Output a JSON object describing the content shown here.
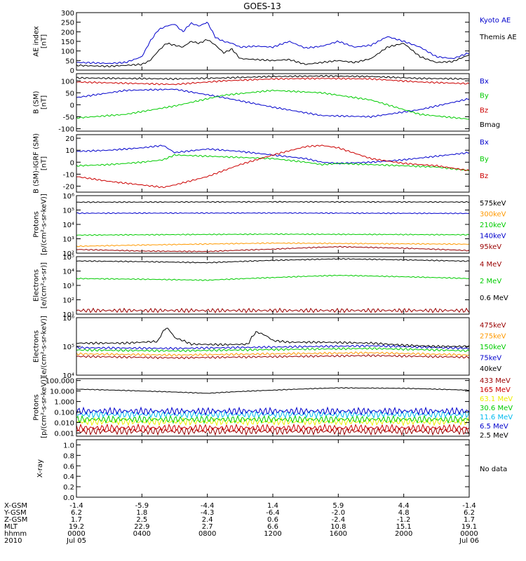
{
  "title": "GOES-13",
  "colors": {
    "black": "#000000",
    "blue": "#0000cc",
    "red": "#cc0000",
    "green": "#00cc00",
    "darkred": "#990000",
    "orange": "#ff9900",
    "cyan": "#00bbee",
    "yellow": "#eeee00"
  },
  "chart_data": [
    {
      "type": "line",
      "ylabel": [
        "AE index",
        "[nT]"
      ],
      "scale": "linear",
      "ylim": [
        0,
        300
      ],
      "yticks": [
        0,
        50,
        100,
        150,
        200,
        250,
        300
      ],
      "ytick_labels": [
        "0",
        "50",
        "100",
        "150",
        "200",
        "250",
        "300"
      ],
      "series": [
        {
          "name": "Kyoto AE",
          "color": "blue",
          "x": [
            0,
            1,
            2,
            3,
            4,
            4.5,
            5,
            5.5,
            6,
            6.5,
            7,
            7.5,
            8,
            8.5,
            9,
            9.5,
            10,
            11,
            12,
            13,
            14,
            15,
            16,
            17,
            18,
            19,
            20,
            21,
            22,
            23,
            24
          ],
          "y": [
            40,
            38,
            35,
            40,
            70,
            150,
            210,
            230,
            240,
            200,
            245,
            230,
            250,
            170,
            150,
            140,
            120,
            125,
            120,
            150,
            115,
            125,
            150,
            120,
            130,
            175,
            150,
            120,
            70,
            60,
            90
          ]
        },
        {
          "name": "Themis AE",
          "color": "black",
          "x": [
            0,
            1,
            2,
            3,
            4,
            4.5,
            5,
            5.5,
            6,
            6.5,
            7,
            7.5,
            8,
            8.5,
            9,
            9.5,
            10,
            11,
            12,
            13,
            14,
            15,
            16,
            17,
            18,
            19,
            20,
            21,
            22,
            23,
            24
          ],
          "y": [
            25,
            22,
            20,
            25,
            30,
            50,
            100,
            140,
            130,
            120,
            150,
            140,
            160,
            130,
            90,
            110,
            60,
            55,
            50,
            55,
            30,
            40,
            50,
            40,
            60,
            120,
            140,
            70,
            40,
            45,
            80
          ]
        }
      ]
    },
    {
      "type": "line",
      "ylabel": [
        "B (SM)",
        "[nT]"
      ],
      "scale": "linear",
      "ylim": [
        -110,
        130
      ],
      "yticks": [
        -100,
        -50,
        0,
        50,
        100
      ],
      "ytick_labels": [
        "-100",
        "-50",
        "0",
        "50",
        "100"
      ],
      "series": [
        {
          "name": "Bx",
          "color": "blue",
          "x": [
            0,
            3,
            6,
            9,
            12,
            15,
            18,
            21,
            24
          ],
          "y": [
            30,
            60,
            65,
            30,
            -10,
            -45,
            -50,
            -20,
            25
          ]
        },
        {
          "name": "By",
          "color": "green",
          "x": [
            0,
            3,
            6,
            9,
            12,
            15,
            18,
            21,
            24
          ],
          "y": [
            -55,
            -40,
            -5,
            40,
            60,
            50,
            20,
            -40,
            -60
          ]
        },
        {
          "name": "Bz",
          "color": "red",
          "x": [
            0,
            3,
            6,
            9,
            12,
            15,
            18,
            21,
            24
          ],
          "y": [
            95,
            90,
            85,
            100,
            108,
            110,
            108,
            95,
            88
          ]
        },
        {
          "name": "Bmag",
          "color": "black",
          "x": [
            0,
            3,
            6,
            9,
            12,
            15,
            18,
            21,
            24
          ],
          "y": [
            112,
            110,
            108,
            112,
            118,
            120,
            118,
            110,
            108
          ]
        }
      ]
    },
    {
      "type": "line",
      "ylabel": [
        "B (SM)-IGRF (SM)",
        "[nT]"
      ],
      "scale": "linear",
      "ylim": [
        -25,
        23
      ],
      "yticks": [
        -20,
        -10,
        0,
        10,
        20
      ],
      "ytick_labels": [
        "-20",
        "-10",
        "0",
        "10",
        "20"
      ],
      "series": [
        {
          "name": "Bx",
          "color": "blue",
          "x": [
            0,
            2,
            4,
            5.3,
            6,
            8,
            10,
            12,
            14,
            15,
            16,
            18,
            20,
            22,
            24
          ],
          "y": [
            9,
            10,
            12,
            14,
            8,
            11,
            9,
            6,
            3,
            0,
            -1,
            0,
            2,
            5,
            8
          ]
        },
        {
          "name": "By",
          "color": "green",
          "x": [
            0,
            2,
            4,
            5.3,
            6,
            8,
            10,
            12,
            14,
            15,
            16,
            18,
            20,
            22,
            24
          ],
          "y": [
            -3,
            -2,
            0,
            2,
            6,
            5,
            4,
            3,
            0,
            -2,
            -1,
            -2,
            -3,
            -4,
            -7
          ]
        },
        {
          "name": "Bz",
          "color": "red",
          "x": [
            0,
            2,
            4,
            5.3,
            6,
            8,
            10,
            12,
            14,
            15,
            16,
            18,
            20,
            22,
            24
          ],
          "y": [
            -12,
            -16,
            -19,
            -21,
            -19,
            -12,
            -2,
            6,
            13,
            14,
            12,
            3,
            -1,
            -3,
            -7
          ]
        }
      ]
    },
    {
      "type": "line",
      "ylabel": [
        "Protons",
        "[p/(cm²-s-sr-keV)]"
      ],
      "scale": "log",
      "ylim": [
        100,
        1000000
      ],
      "yticks": [
        100,
        1000,
        10000,
        100000,
        1000000
      ],
      "ytick_labels": [
        "10²",
        "10³",
        "10⁴",
        "10⁵",
        "10⁶"
      ],
      "series": [
        {
          "name": "575keV",
          "color": "black",
          "x": [
            0,
            12,
            24
          ],
          "y": [
            350000,
            370000,
            360000
          ]
        },
        {
          "name": "300keV",
          "color": "orange",
          "x": [
            0,
            12,
            24
          ],
          "y": [
            300,
            500,
            420
          ]
        },
        {
          "name": "210keV",
          "color": "green",
          "x": [
            0,
            12,
            24
          ],
          "y": [
            1800,
            2100,
            1900
          ]
        },
        {
          "name": "140keV",
          "color": "blue",
          "x": [
            0,
            12,
            24
          ],
          "y": [
            60000,
            62000,
            58000
          ]
        },
        {
          "name": "95keV",
          "color": "darkred",
          "x": [
            0,
            4,
            8,
            12,
            16,
            20,
            24
          ],
          "y": [
            180,
            140,
            130,
            190,
            280,
            220,
            150
          ]
        }
      ]
    },
    {
      "type": "line",
      "ylabel": [
        "Electrons",
        "[e/(cm²-s-sr)]"
      ],
      "scale": "log",
      "ylim": [
        10,
        100000
      ],
      "yticks": [
        10,
        100,
        1000,
        10000,
        100000
      ],
      "ytick_labels": [
        "10¹",
        "10²",
        "10³",
        "10⁴",
        "10⁵"
      ],
      "series": [
        {
          "name": "4 MeV",
          "color": "darkred",
          "x": [
            0,
            12,
            24
          ],
          "y": [
            18,
            18,
            18
          ]
        },
        {
          "name": "2 MeV",
          "color": "green",
          "x": [
            0,
            4,
            8,
            12,
            16,
            20,
            24
          ],
          "y": [
            3000,
            2700,
            2300,
            3500,
            5000,
            4000,
            3000
          ]
        },
        {
          "name": "0.6 MeV",
          "color": "black",
          "x": [
            0,
            4,
            8,
            12,
            16,
            20,
            24
          ],
          "y": [
            50000,
            45000,
            38000,
            55000,
            70000,
            60000,
            48000
          ]
        }
      ]
    },
    {
      "type": "line",
      "ylabel": [
        "Electrons",
        "[e/(cm²-s-sr-keV)]"
      ],
      "scale": "log",
      "ylim": [
        10000,
        1000000
      ],
      "yticks": [
        10000,
        100000,
        1000000
      ],
      "ytick_labels": [
        "10⁴",
        "10⁵",
        "10⁶"
      ],
      "series": [
        {
          "name": "475keV",
          "color": "darkred",
          "x": [
            0,
            6,
            12,
            18,
            24
          ],
          "y": [
            45000,
            40000,
            44000,
            48000,
            42000
          ]
        },
        {
          "name": "275keV",
          "color": "orange",
          "x": [
            0,
            6,
            12,
            18,
            24
          ],
          "y": [
            55000,
            50000,
            55000,
            60000,
            50000
          ]
        },
        {
          "name": "150keV",
          "color": "green",
          "x": [
            0,
            6,
            12,
            18,
            24
          ],
          "y": [
            75000,
            70000,
            78000,
            85000,
            70000
          ]
        },
        {
          "name": "75keV",
          "color": "blue",
          "x": [
            0,
            6,
            12,
            18,
            24
          ],
          "y": [
            90000,
            85000,
            95000,
            105000,
            85000
          ]
        },
        {
          "name": "40keV",
          "color": "black",
          "x": [
            0,
            3,
            5,
            5.5,
            6,
            7,
            9,
            10.5,
            11,
            11.5,
            12,
            13,
            15,
            18,
            20,
            22,
            24
          ],
          "y": [
            130000,
            130000,
            150000,
            450000,
            200000,
            120000,
            115000,
            120000,
            320000,
            250000,
            160000,
            140000,
            140000,
            130000,
            110000,
            100000,
            100000
          ]
        }
      ]
    },
    {
      "type": "line",
      "ylabel": [
        "Protons",
        "[p/(cm²-s-sr-keV)]"
      ],
      "scale": "log",
      "ylim": [
        0.0005,
        150
      ],
      "yticks": [
        0.001,
        0.01,
        0.1,
        1,
        10,
        100
      ],
      "ytick_labels": [
        "0.001",
        "0.010",
        "0.100",
        "1.000",
        "10.000",
        "100.000"
      ],
      "series": [
        {
          "name": "433 MeV",
          "color": "darkred",
          "x": [
            0,
            24
          ],
          "y": [
            0.0015,
            0.0015
          ]
        },
        {
          "name": "165 MeV",
          "color": "red",
          "x": [
            0,
            24
          ],
          "y": [
            0.003,
            0.003
          ]
        },
        {
          "name": "63.1 MeV",
          "color": "yellow",
          "x": [
            0,
            24
          ],
          "y": [
            0.012,
            0.012
          ]
        },
        {
          "name": "30.6 MeV",
          "color": "green",
          "x": [
            0,
            24
          ],
          "y": [
            0.02,
            0.02
          ]
        },
        {
          "name": "11.6 MeV",
          "color": "cyan",
          "x": [
            0,
            24
          ],
          "y": [
            0.06,
            0.06
          ]
        },
        {
          "name": "6.5 MeV",
          "color": "blue",
          "x": [
            0,
            24
          ],
          "y": [
            0.12,
            0.12
          ]
        },
        {
          "name": "2.5 MeV",
          "color": "black",
          "x": [
            0,
            4,
            8,
            12,
            16,
            20,
            24
          ],
          "y": [
            15,
            10,
            6,
            12,
            20,
            18,
            12
          ]
        }
      ]
    },
    {
      "type": "line",
      "ylabel": [
        "X-ray"
      ],
      "scale": "linear",
      "ylim": [
        0,
        1.1
      ],
      "yticks": [
        0,
        0.2,
        0.4,
        0.6,
        0.8,
        1.0
      ],
      "ytick_labels": [
        "0.0",
        "0.2",
        "0.4",
        "0.6",
        "0.8",
        "1.0"
      ],
      "no_data_label": "No data",
      "series": []
    }
  ],
  "x_axis": {
    "xlim": [
      0,
      24
    ],
    "row_labels": [
      "X-GSM",
      "Y-GSM",
      "Z-GSM",
      "MLT",
      "hhmm",
      "2010"
    ],
    "ticks": [
      {
        "x": 0,
        "values": [
          "-1.4",
          "6.2",
          "1.7",
          "19.2",
          "0000",
          "Jul 05"
        ]
      },
      {
        "x": 4,
        "values": [
          "-5.9",
          "1.8",
          "2.5",
          "22.9",
          "0400",
          ""
        ]
      },
      {
        "x": 8,
        "values": [
          "-4.4",
          "-4.3",
          "2.4",
          "2.7",
          "0800",
          ""
        ]
      },
      {
        "x": 12,
        "values": [
          "1.4",
          "-6.4",
          "0.6",
          "6.6",
          "1200",
          ""
        ]
      },
      {
        "x": 16,
        "values": [
          "5.9",
          "-2.0",
          "-2.4",
          "10.8",
          "1600",
          ""
        ]
      },
      {
        "x": 20,
        "values": [
          "4.4",
          "4.8",
          "-1.2",
          "15.1",
          "2000",
          ""
        ]
      },
      {
        "x": 24,
        "values": [
          "-1.4",
          "6.2",
          "1.7",
          "19.1",
          "0000",
          "Jul 06"
        ]
      }
    ]
  }
}
